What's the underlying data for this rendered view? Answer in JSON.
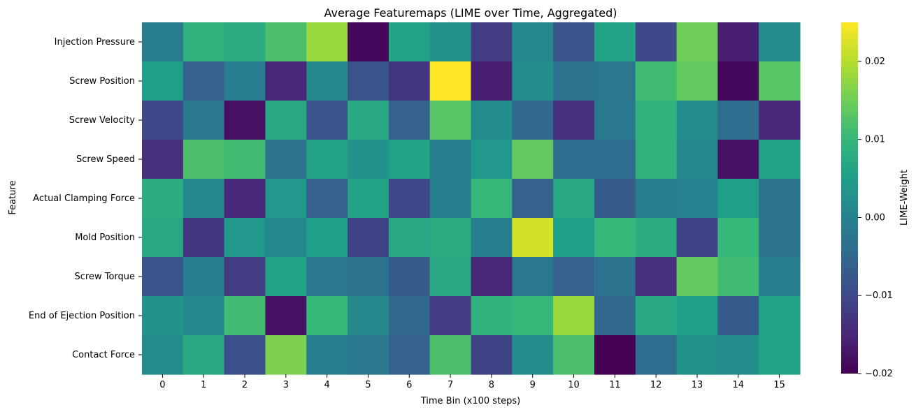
{
  "chart_data": {
    "type": "heatmap",
    "title": "Average Featuremaps (LIME over Time, Aggregated)",
    "xlabel": "Time Bin (x100 steps)",
    "ylabel": "Feature",
    "x_categories": [
      "0",
      "1",
      "2",
      "3",
      "4",
      "5",
      "6",
      "7",
      "8",
      "9",
      "10",
      "11",
      "12",
      "13",
      "14",
      "15"
    ],
    "y_categories": [
      "Injection Pressure",
      "Screw Position",
      "Screw Velocity",
      "Screw Speed",
      "Actual Clamping Force",
      "Mold Position",
      "Screw Torque",
      "End of Ejection Position",
      "Contact Force"
    ],
    "values": [
      [
        -0.001,
        0.009,
        0.008,
        0.012,
        0.018,
        -0.019,
        0.006,
        0.003,
        -0.012,
        0.001,
        -0.008,
        0.006,
        -0.01,
        0.015,
        -0.016,
        0.002
      ],
      [
        0.005,
        -0.006,
        -0.001,
        -0.015,
        0.001,
        -0.008,
        -0.013,
        0.025,
        -0.016,
        0.002,
        -0.003,
        -0.002,
        0.011,
        0.014,
        -0.019,
        0.013
      ],
      [
        -0.01,
        -0.002,
        -0.018,
        0.007,
        -0.008,
        0.007,
        -0.006,
        0.013,
        0.002,
        -0.005,
        -0.014,
        -0.002,
        0.009,
        0.002,
        -0.004,
        -0.015
      ],
      [
        -0.014,
        0.012,
        0.011,
        -0.003,
        0.006,
        0.003,
        0.006,
        -0.001,
        0.004,
        0.014,
        -0.004,
        -0.004,
        0.009,
        0.001,
        -0.018,
        0.006
      ],
      [
        0.008,
        0.001,
        -0.015,
        0.004,
        -0.006,
        0.006,
        -0.01,
        -0.001,
        0.01,
        -0.006,
        0.007,
        -0.007,
        -0.001,
        0.0,
        0.005,
        -0.003
      ],
      [
        0.007,
        -0.013,
        0.004,
        0.001,
        0.005,
        -0.011,
        0.007,
        0.008,
        -0.001,
        0.022,
        0.005,
        0.01,
        0.008,
        -0.011,
        0.01,
        -0.003
      ],
      [
        -0.008,
        -0.001,
        -0.012,
        0.006,
        -0.002,
        -0.003,
        -0.007,
        0.007,
        -0.015,
        -0.002,
        -0.006,
        -0.003,
        -0.014,
        0.014,
        0.011,
        -0.001
      ],
      [
        0.003,
        0.001,
        0.011,
        -0.018,
        0.01,
        0.001,
        -0.005,
        -0.012,
        0.009,
        0.01,
        0.018,
        -0.005,
        0.007,
        0.005,
        -0.007,
        0.006
      ],
      [
        0.002,
        0.007,
        -0.009,
        0.016,
        -0.001,
        -0.002,
        -0.006,
        0.012,
        -0.011,
        0.002,
        0.012,
        -0.02,
        -0.004,
        0.003,
        0.002,
        0.006
      ]
    ],
    "colormap": "viridis",
    "zlim": [
      -0.02,
      0.025
    ],
    "colorbar": {
      "label": "LIME-Weight",
      "ticks": [
        {
          "value": -0.02,
          "label": "−0.02"
        },
        {
          "value": -0.01,
          "label": "−0.01"
        },
        {
          "value": 0.0,
          "label": "0.00"
        },
        {
          "value": 0.01,
          "label": "0.01"
        },
        {
          "value": 0.02,
          "label": "0.02"
        }
      ]
    }
  }
}
